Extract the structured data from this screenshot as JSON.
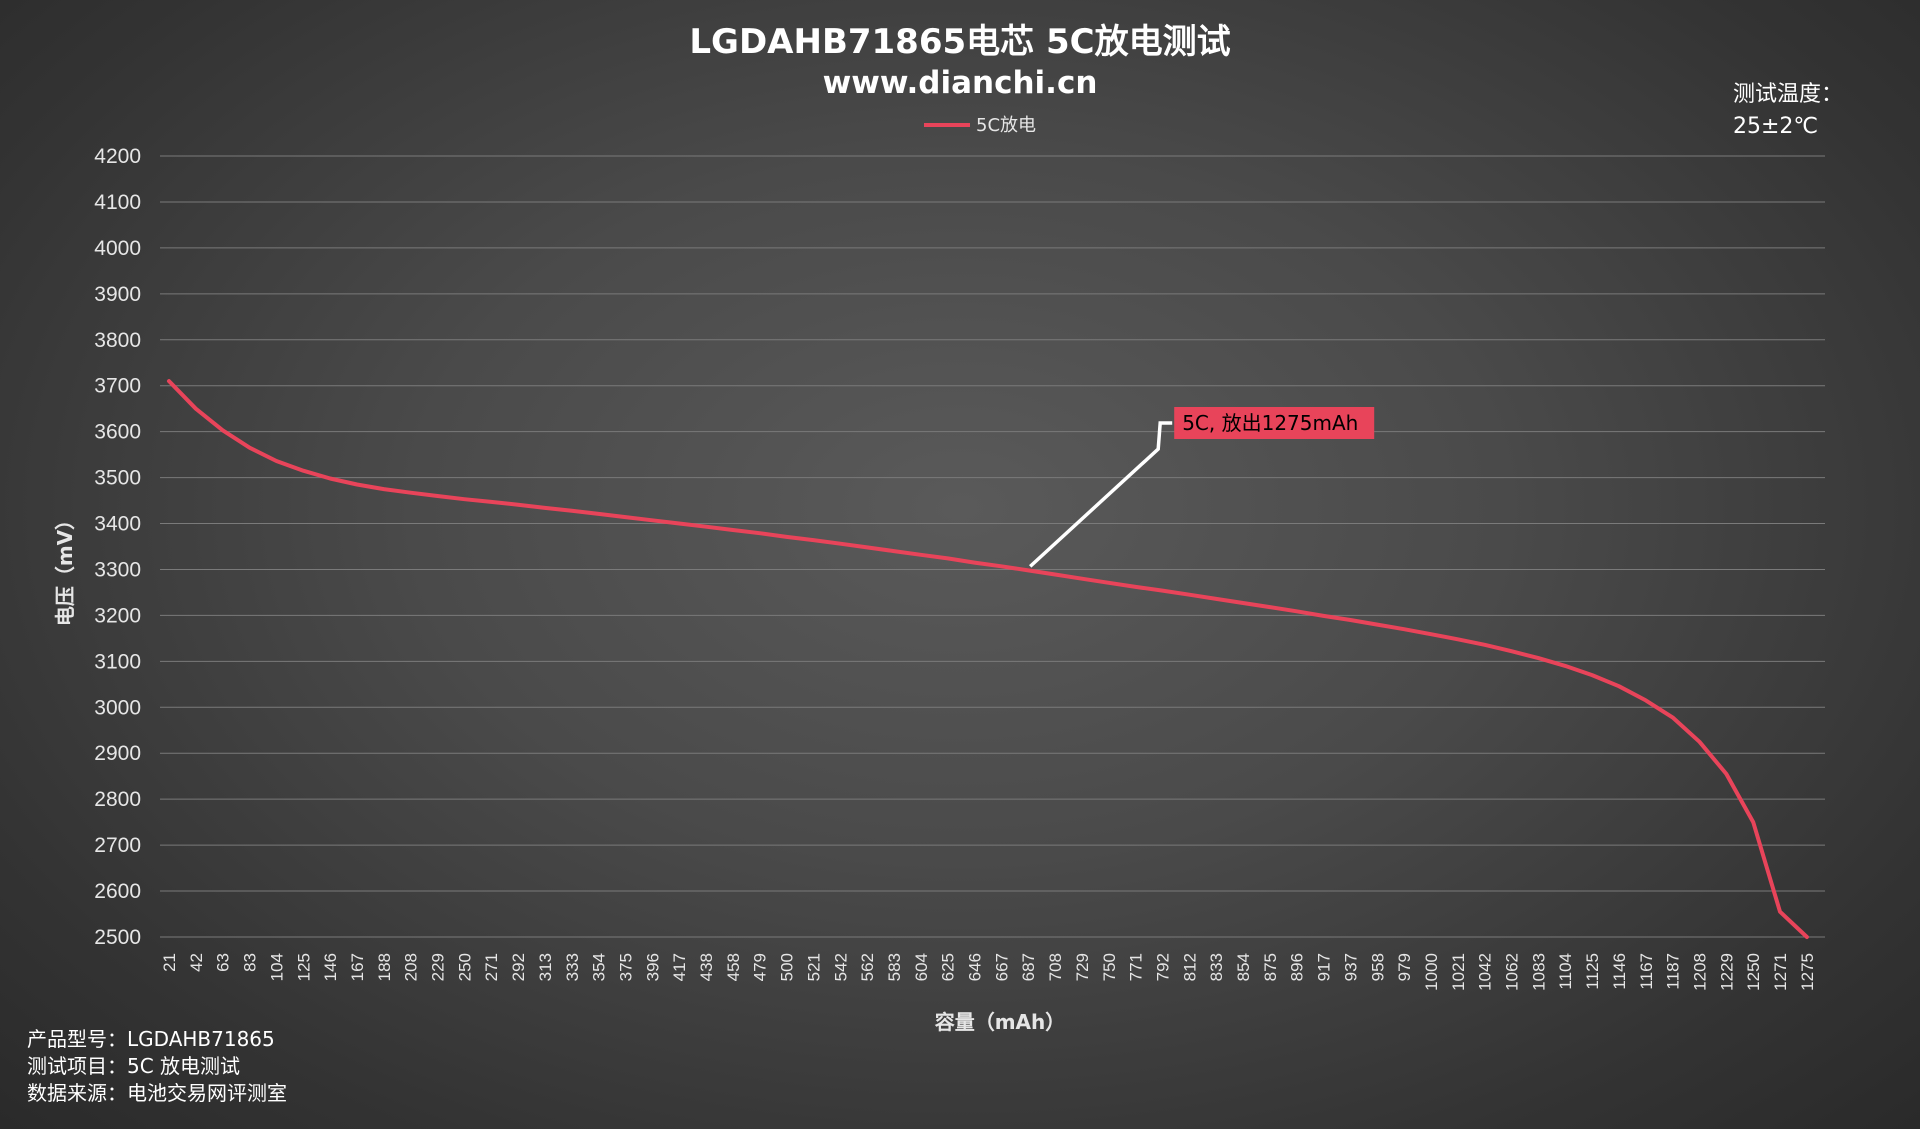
{
  "chart_data": {
    "type": "line",
    "title": "LGDAHB71865电芯 5C放电测试",
    "subtitle": "www.dianchi.cn",
    "xlabel": "容量（mAh）",
    "ylabel": "电压（mV）",
    "ylim": [
      2500,
      4200
    ],
    "yticks": [
      4200,
      4100,
      4000,
      3900,
      3800,
      3700,
      3600,
      3500,
      3400,
      3300,
      3200,
      3100,
      3000,
      2900,
      2800,
      2700,
      2600,
      2500
    ],
    "categories": [
      "21",
      "42",
      "63",
      "83",
      "104",
      "125",
      "146",
      "167",
      "188",
      "208",
      "229",
      "250",
      "271",
      "292",
      "313",
      "333",
      "354",
      "375",
      "396",
      "417",
      "438",
      "458",
      "479",
      "500",
      "521",
      "542",
      "562",
      "583",
      "604",
      "625",
      "646",
      "667",
      "687",
      "708",
      "729",
      "750",
      "771",
      "792",
      "812",
      "833",
      "854",
      "875",
      "896",
      "917",
      "937",
      "958",
      "979",
      "1000",
      "1021",
      "1042",
      "1062",
      "1083",
      "1104",
      "1125",
      "1146",
      "1167",
      "1187",
      "1208",
      "1229",
      "1250",
      "1271",
      "1275"
    ],
    "grid": true,
    "legend_position": "top-center",
    "series": [
      {
        "name": "5C放电",
        "color": "#e8445a",
        "values": [
          3710,
          3650,
          3603,
          3565,
          3536,
          3515,
          3498,
          3485,
          3475,
          3467,
          3460,
          3453,
          3447,
          3441,
          3434,
          3428,
          3421,
          3414,
          3407,
          3400,
          3393,
          3386,
          3379,
          3371,
          3364,
          3356,
          3348,
          3340,
          3332,
          3324,
          3315,
          3307,
          3298,
          3289,
          3280,
          3271,
          3262,
          3254,
          3245,
          3236,
          3227,
          3218,
          3209,
          3199,
          3190,
          3180,
          3170,
          3159,
          3148,
          3136,
          3122,
          3107,
          3090,
          3070,
          3046,
          3015,
          2978,
          2925,
          2855,
          2750,
          2555,
          2500
        ]
      }
    ],
    "annotation": {
      "text": "5C, 放出1275mAh",
      "at_category": "687",
      "box_color": "#e8445a"
    },
    "temperature": {
      "label": "测试温度：",
      "value": "25±2℃"
    },
    "info": {
      "product": "产品型号：LGDAHB71865",
      "test_item": "测试项目：5C 放电测试",
      "source": "数据来源：电池交易网评测室"
    }
  }
}
